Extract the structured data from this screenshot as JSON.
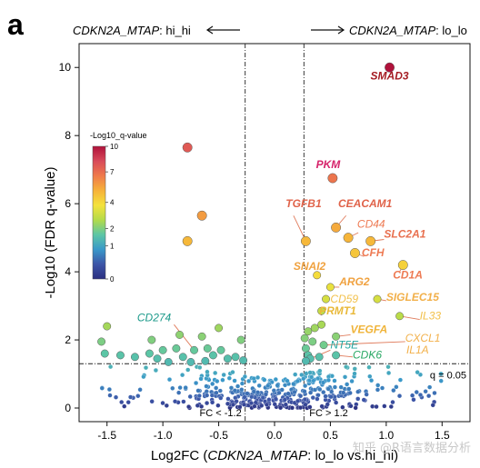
{
  "panel_letter": "a",
  "direction": {
    "left": {
      "gene": "CDKN2A_MTAP",
      "suffix": ": hi_hi"
    },
    "right": {
      "gene": "CDKN2A_MTAP",
      "suffix": ": lo_lo"
    }
  },
  "watermark": "知乎 @R语言数据分析",
  "colors": {
    "dense_cloud": "#1f3a8a",
    "guide": "#222222"
  },
  "chart_data": {
    "type": "scatter",
    "xlabel": {
      "prefix": "Log2FC (",
      "gene": "CDKN2A_MTAP",
      "suffix": ": lo_lo vs.hi_hi)"
    },
    "ylabel": "-Log10 (FDR q-value)",
    "xlim": [
      -1.75,
      1.75
    ],
    "ylim": [
      -0.4,
      10.7
    ],
    "xticks": [
      -1.5,
      -1.0,
      -0.5,
      0.0,
      0.5,
      1.0,
      1.5
    ],
    "xtick_labels": [
      "-1.5",
      "-1.0",
      "-0.5",
      "0.0",
      "0.5",
      "1.0",
      "1.5"
    ],
    "yticks": [
      0,
      2,
      4,
      6,
      8,
      10
    ],
    "ytick_labels": [
      "0",
      "2",
      "4",
      "6",
      "8",
      "10"
    ],
    "grid": false,
    "thresholds": {
      "fc_left": -0.263,
      "fc_right": 0.263,
      "q_line": 1.301,
      "fc_left_label": "FC < -1.2",
      "fc_right_label": "FC > 1.2",
      "q_label": "q = 0.05"
    },
    "colorbar": {
      "title": "-Log10_q-value",
      "min": 0,
      "max": 10,
      "ticks": [
        0,
        1,
        2,
        4,
        7,
        10
      ],
      "tick_labels": [
        "0",
        "1",
        "2",
        "4",
        "7",
        "10"
      ],
      "stops": [
        "#2b2f7f",
        "#3d55a7",
        "#3a98c9",
        "#5cc6a6",
        "#b3db4a",
        "#f4e23c",
        "#f6b23a",
        "#ef7a4b",
        "#d84a5a",
        "#b0123b"
      ]
    },
    "points": [
      {
        "x": 1.03,
        "y": 10.0
      },
      {
        "x": -0.78,
        "y": 7.65
      },
      {
        "x": 0.52,
        "y": 6.75
      },
      {
        "x": -0.65,
        "y": 5.65
      },
      {
        "x": -0.78,
        "y": 4.9
      },
      {
        "x": 0.28,
        "y": 4.9
      },
      {
        "x": 0.55,
        "y": 5.3
      },
      {
        "x": 0.66,
        "y": 5.0
      },
      {
        "x": 0.72,
        "y": 4.55
      },
      {
        "x": 0.86,
        "y": 4.9
      },
      {
        "x": 1.15,
        "y": 4.2
      },
      {
        "x": 0.38,
        "y": 3.9
      },
      {
        "x": 0.5,
        "y": 3.55
      },
      {
        "x": 0.46,
        "y": 3.2
      },
      {
        "x": 0.92,
        "y": 3.2
      },
      {
        "x": 0.42,
        "y": 2.85
      },
      {
        "x": 1.12,
        "y": 2.7
      },
      {
        "x": 0.42,
        "y": 2.45
      },
      {
        "x": 0.3,
        "y": 2.25
      },
      {
        "x": 0.36,
        "y": 2.35
      },
      {
        "x": 0.55,
        "y": 2.1
      },
      {
        "x": 0.27,
        "y": 2.05
      },
      {
        "x": 0.34,
        "y": 1.95
      },
      {
        "x": 0.44,
        "y": 1.85
      },
      {
        "x": 0.28,
        "y": 1.75
      },
      {
        "x": 0.3,
        "y": 1.55
      },
      {
        "x": 0.32,
        "y": 1.45
      },
      {
        "x": 0.55,
        "y": 1.55
      },
      {
        "x": 0.4,
        "y": 1.5
      },
      {
        "x": 0.28,
        "y": 1.38
      },
      {
        "x": -0.5,
        "y": 2.35
      },
      {
        "x": -0.3,
        "y": 2.0
      },
      {
        "x": -0.65,
        "y": 2.1
      },
      {
        "x": -0.85,
        "y": 2.15
      },
      {
        "x": -0.88,
        "y": 1.75
      },
      {
        "x": -0.82,
        "y": 1.5
      },
      {
        "x": -0.72,
        "y": 1.7
      },
      {
        "x": -0.6,
        "y": 1.75
      },
      {
        "x": -0.55,
        "y": 1.55
      },
      {
        "x": -0.48,
        "y": 1.7
      },
      {
        "x": -0.42,
        "y": 1.45
      },
      {
        "x": -0.35,
        "y": 1.5
      },
      {
        "x": -0.28,
        "y": 1.4
      },
      {
        "x": -0.62,
        "y": 1.38
      },
      {
        "x": -0.75,
        "y": 1.35
      },
      {
        "x": -1.0,
        "y": 1.7
      },
      {
        "x": -1.12,
        "y": 1.6
      },
      {
        "x": -1.05,
        "y": 1.45
      },
      {
        "x": -1.25,
        "y": 1.5
      },
      {
        "x": -1.38,
        "y": 1.55
      },
      {
        "x": -1.52,
        "y": 1.6
      },
      {
        "x": -1.55,
        "y": 1.95
      },
      {
        "x": -1.5,
        "y": 2.4
      },
      {
        "x": -1.1,
        "y": 2.0
      },
      {
        "x": -0.95,
        "y": 1.35
      }
    ],
    "labels": [
      {
        "text": "SMAD3",
        "x": 1.03,
        "y": 9.65,
        "anchor": "middle",
        "color": "#a51d24",
        "bold": true
      },
      {
        "text": "PKM",
        "x": 0.48,
        "y": 7.05,
        "anchor": "middle",
        "color": "#d6246b",
        "bold": true
      },
      {
        "text": "TGFB1",
        "x": 0.1,
        "y": 5.9,
        "anchor": "start",
        "color": "#e0634a",
        "bold": true
      },
      {
        "text": "CEACAM1",
        "x": 0.57,
        "y": 5.9,
        "anchor": "start",
        "color": "#e0634a",
        "bold": true
      },
      {
        "text": "CD44",
        "x": 0.74,
        "y": 5.3,
        "anchor": "start",
        "color": "#ee7b54",
        "bold": false
      },
      {
        "text": "SLC2A1",
        "x": 0.98,
        "y": 5.0,
        "anchor": "start",
        "color": "#e8704f",
        "bold": true
      },
      {
        "text": "CFH",
        "x": 0.78,
        "y": 4.45,
        "anchor": "start",
        "color": "#ee7b54",
        "bold": true
      },
      {
        "text": "CD1A",
        "x": 1.06,
        "y": 3.8,
        "anchor": "start",
        "color": "#ee7b54",
        "bold": true
      },
      {
        "text": "SNAI2",
        "x": 0.17,
        "y": 4.05,
        "anchor": "start",
        "color": "#f0a240",
        "bold": true
      },
      {
        "text": "ARG2",
        "x": 0.58,
        "y": 3.6,
        "anchor": "start",
        "color": "#f0a240",
        "bold": true
      },
      {
        "text": "CD59",
        "x": 0.5,
        "y": 3.1,
        "anchor": "start",
        "color": "#f2c04a",
        "bold": false
      },
      {
        "text": "SIGLEC15",
        "x": 1.0,
        "y": 3.15,
        "anchor": "start",
        "color": "#f2b04a",
        "bold": true
      },
      {
        "text": "PRMT1",
        "x": 0.4,
        "y": 2.75,
        "anchor": "start",
        "color": "#e9b93a",
        "bold": true
      },
      {
        "text": "IL33",
        "x": 1.3,
        "y": 2.6,
        "anchor": "start",
        "color": "#f2c04a",
        "bold": false
      },
      {
        "text": "VEGFA",
        "x": 0.68,
        "y": 2.2,
        "anchor": "start",
        "color": "#f0b43a",
        "bold": true
      },
      {
        "text": "CXCL1",
        "x": 1.17,
        "y": 1.95,
        "anchor": "start",
        "color": "#f2b04a",
        "bold": false
      },
      {
        "text": "IL1A",
        "x": 1.18,
        "y": 1.6,
        "anchor": "start",
        "color": "#f2b04a",
        "bold": false
      },
      {
        "text": "NT5E",
        "x": 0.5,
        "y": 1.75,
        "anchor": "start",
        "color": "#22a6a0",
        "bold": false
      },
      {
        "text": "CDK6",
        "x": 0.7,
        "y": 1.45,
        "anchor": "start",
        "color": "#2aa864",
        "bold": false
      },
      {
        "text": "CD274",
        "x": -1.23,
        "y": 2.55,
        "anchor": "start",
        "color": "#1c9a8a",
        "bold": false
      }
    ],
    "connectors": [
      {
        "x1": 0.28,
        "y1": 4.9,
        "x2": 0.17,
        "y2": 5.65
      },
      {
        "x1": 0.55,
        "y1": 5.3,
        "x2": 0.64,
        "y2": 5.65
      },
      {
        "x1": 0.66,
        "y1": 5.0,
        "x2": 0.75,
        "y2": 5.15
      },
      {
        "x1": 0.86,
        "y1": 4.9,
        "x2": 0.98,
        "y2": 4.95
      },
      {
        "x1": 0.72,
        "y1": 4.55,
        "x2": 0.8,
        "y2": 4.45
      },
      {
        "x1": 1.15,
        "y1": 4.2,
        "x2": 1.12,
        "y2": 4.0
      },
      {
        "x1": 0.38,
        "y1": 3.9,
        "x2": 0.35,
        "y2": 3.95
      },
      {
        "x1": 0.5,
        "y1": 3.55,
        "x2": 0.58,
        "y2": 3.55
      },
      {
        "x1": 0.92,
        "y1": 3.2,
        "x2": 1.0,
        "y2": 3.15
      },
      {
        "x1": 0.42,
        "y1": 2.85,
        "x2": 0.42,
        "y2": 2.72
      },
      {
        "x1": 1.12,
        "y1": 2.7,
        "x2": 1.3,
        "y2": 2.6
      },
      {
        "x1": 0.55,
        "y1": 2.1,
        "x2": 0.68,
        "y2": 2.15
      },
      {
        "x1": 0.44,
        "y1": 1.85,
        "x2": 1.17,
        "y2": 1.95
      },
      {
        "x1": 0.32,
        "y1": 1.45,
        "x2": 0.5,
        "y2": 1.7
      },
      {
        "x1": 0.55,
        "y1": 1.55,
        "x2": 0.7,
        "y2": 1.5
      },
      {
        "x1": -0.72,
        "y1": 1.7,
        "x2": -0.9,
        "y2": 2.45
      }
    ],
    "background_count": 420
  }
}
